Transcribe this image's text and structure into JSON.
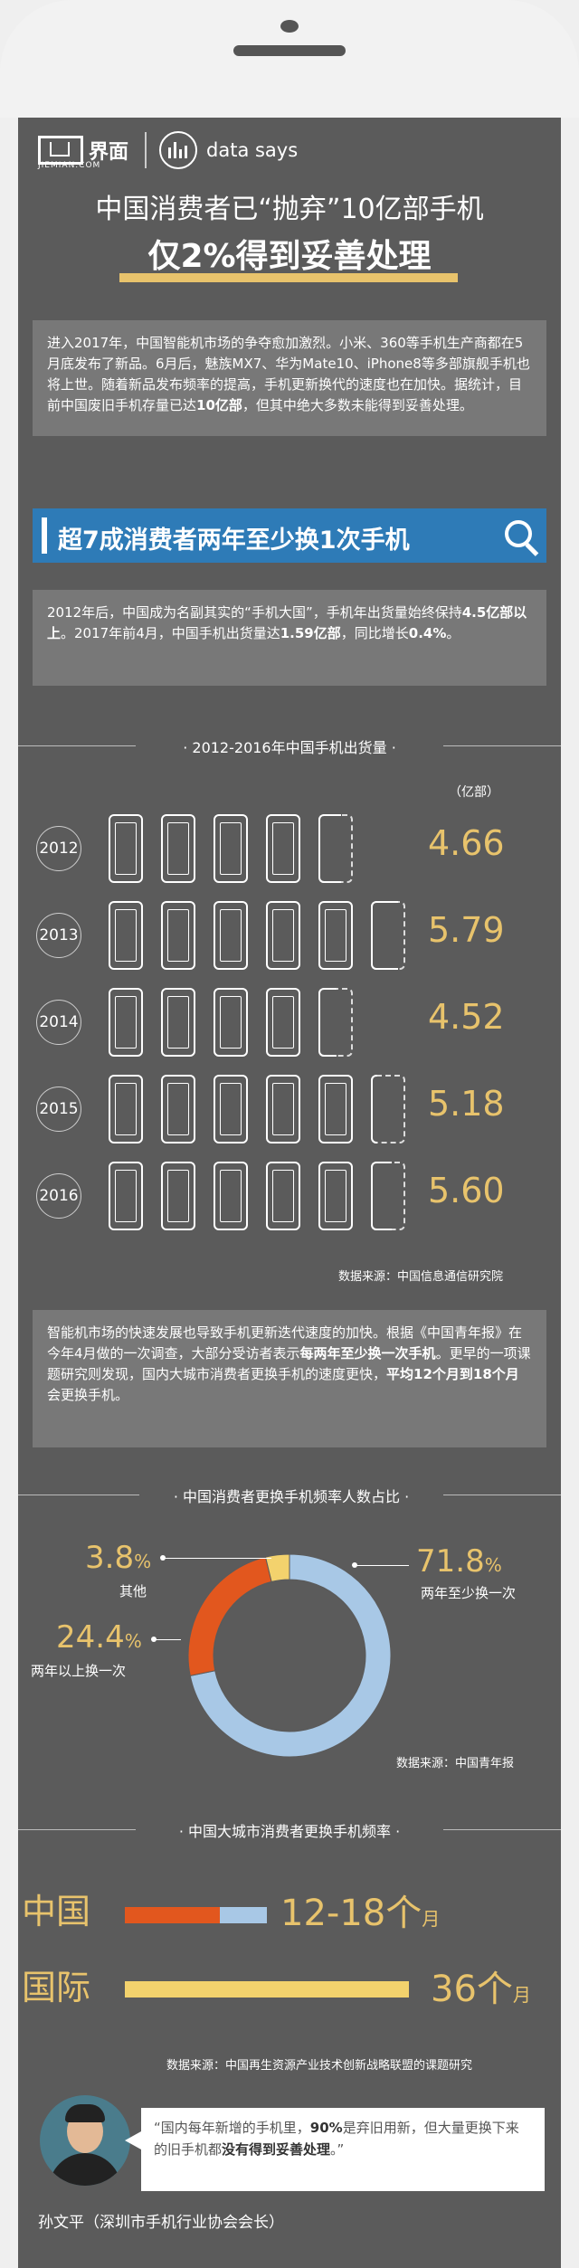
{
  "brand": {
    "name_cn": "界面",
    "name_en": "JIEMIAN.COM",
    "data_says": "data says"
  },
  "title": {
    "line1": "中国消费者已“抛弃”10亿部手机",
    "line2": "仅2%得到妥善处理"
  },
  "intro": {
    "p1": "进入2017年，中国智能机市场的争夺愈加激烈。小米、360等手机生产商都在5月底发布了新品。6月后，魅族MX7、华为Mate10、iPhone8等多部旗舰手机也将上世。随着新品发布频率的提高，手机更新换代的速度也在加快。据统计，目前中国废旧手机存量已达",
    "bold1": "10亿部",
    "p2": "，但其中绝大多数未能得到妥善处理。"
  },
  "banner": {
    "text": "超7成消费者两年至少换1次手机"
  },
  "stats": {
    "p1": "2012年后，中国成为名副其实的“手机大国”，手机年出货量始终保持",
    "b1": "4.5亿部以上",
    "p2": "。2017年前4月，中国手机出货量达",
    "b2": "1.59亿部",
    "p3": "，同比增长",
    "b3": "0.4%",
    "p4": "。"
  },
  "shipments": {
    "section_title": "· 2012-2016年中国手机出货量 ·",
    "unit": "（亿部）",
    "source": "数据来源：中国信息通信研究院"
  },
  "survey": {
    "p1": "智能机市场的快速发展也导致手机更新迭代速度的加快。根据《中国青年报》在今年4月做的一次调查，大部分受访者表示",
    "b1": "每两年至少换一次手机",
    "p2": "。更早的一项课题研究则发现，国内大城市消费者更换手机的速度更快，",
    "b2": "平均12个月到18个月",
    "p3": "会更换手机。"
  },
  "donut_section": {
    "section_title": "· 中国消费者更换手机频率人数占比 ·",
    "source": "数据来源：中国青年报"
  },
  "freq_section": {
    "section_title": "· 中国大城市消费者更换手机频率 ·",
    "source": "数据来源：中国再生资源产业技术创新战略联盟的课题研究",
    "china_label": "中国",
    "china_value": "12-18",
    "intl_label": "国际",
    "intl_value": "36",
    "unit_ge": "个",
    "unit_yue": "月"
  },
  "quote": {
    "p1": "“国内每年新增的手机里，",
    "b1": "90%",
    "p2": "是弃旧用新，但大量更换下来的旧手机都",
    "b2": "没有得到妥善处理",
    "p3": "。”",
    "speaker": "孙文平（深圳市手机行业协会会长）"
  },
  "chart_data": [
    {
      "type": "bar",
      "title": "2012-2016年中国手机出货量",
      "ylabel": "（亿部）",
      "categories": [
        "2012",
        "2013",
        "2014",
        "2015",
        "2016"
      ],
      "values": [
        4.66,
        5.79,
        4.52,
        5.18,
        5.6
      ]
    },
    {
      "type": "pie",
      "title": "中国消费者更换手机频率人数占比",
      "categories": [
        "两年至少换一次",
        "两年以上换一次",
        "其他"
      ],
      "values": [
        71.8,
        24.4,
        3.8
      ],
      "colors": [
        "#a8c8e6",
        "#e2571e",
        "#f3d26d"
      ]
    },
    {
      "type": "bar",
      "title": "中国大城市消费者更换手机频率",
      "categories": [
        "中国",
        "国际"
      ],
      "series": [
        {
          "name": "",
          "values": [
            12,
            36
          ]
        },
        {
          "name": "",
          "values": [
            18,
            36
          ]
        }
      ],
      "colors": [
        "#e2571e",
        "#a8c8e6",
        "#f3d26d"
      ]
    }
  ]
}
